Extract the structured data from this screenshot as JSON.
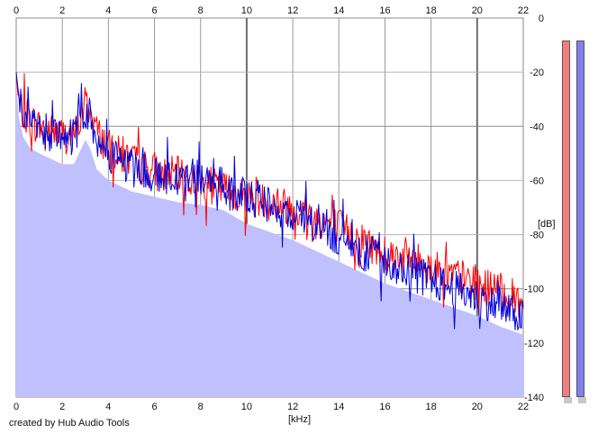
{
  "chart_data": {
    "type": "area",
    "title": "",
    "xlabel": "[kHz]",
    "ylabel": "[dB]",
    "xlim": [
      0,
      22
    ],
    "ylim": [
      -140,
      0
    ],
    "x_ticks": [
      0,
      2,
      4,
      6,
      8,
      10,
      12,
      14,
      16,
      18,
      20,
      22
    ],
    "y_ticks": [
      0,
      -20,
      -40,
      -60,
      -80,
      -100,
      -120,
      -140
    ],
    "grid": true,
    "series": [
      {
        "color": "#ff0000",
        "x": [
          0,
          0.1,
          0.3,
          0.6,
          1,
          1.5,
          2,
          2.5,
          3,
          3.2,
          3.5,
          4,
          5,
          6,
          7,
          8,
          9,
          10,
          11,
          12,
          13,
          14,
          15,
          16,
          17,
          18,
          19,
          20,
          21,
          22
        ],
        "values": [
          -22,
          -30,
          -35,
          -38,
          -40,
          -42,
          -43,
          -44,
          -31,
          -34,
          -42,
          -48,
          -53,
          -57,
          -58,
          -61,
          -63,
          -66,
          -68,
          -70,
          -74,
          -77,
          -82,
          -87,
          -88,
          -92,
          -95,
          -98,
          -101,
          -105
        ]
      },
      {
        "color": "#0000dd",
        "x": [
          0,
          0.1,
          0.3,
          0.6,
          1,
          1.5,
          2,
          2.5,
          3,
          3.2,
          3.5,
          4,
          5,
          6,
          7,
          8,
          9,
          10,
          11,
          12,
          13,
          14,
          15,
          16,
          17,
          18,
          19,
          20,
          21,
          22
        ],
        "values": [
          -20,
          -28,
          -36,
          -40,
          -41,
          -43,
          -45,
          -44,
          -34,
          -36,
          -45,
          -50,
          -55,
          -58,
          -59,
          -58,
          -62,
          -66,
          -69,
          -73,
          -77,
          -81,
          -86,
          -90,
          -93,
          -97,
          -100,
          -103,
          -107,
          -111
        ]
      }
    ],
    "envelope": {
      "color": "#c0c0ff",
      "x": [
        0,
        0.1,
        0.3,
        0.6,
        1,
        1.5,
        2,
        2.5,
        3,
        3.2,
        3.5,
        4,
        5,
        6,
        7,
        8,
        9,
        10,
        11,
        12,
        13,
        14,
        15,
        16,
        17,
        18,
        19,
        20,
        21,
        22
      ],
      "values": [
        -22,
        -36,
        -44,
        -48,
        -50,
        -52,
        -54,
        -54,
        -45,
        -48,
        -56,
        -60,
        -64,
        -66,
        -68,
        -69,
        -71,
        -76,
        -79,
        -82,
        -86,
        -90,
        -94,
        -98,
        -101,
        -104,
        -107,
        -110,
        -114,
        -117
      ]
    }
  },
  "meters": [
    {
      "color": "#f08080"
    },
    {
      "color": "#8080f0"
    }
  ],
  "credit": "created by Hub Audio Tools"
}
